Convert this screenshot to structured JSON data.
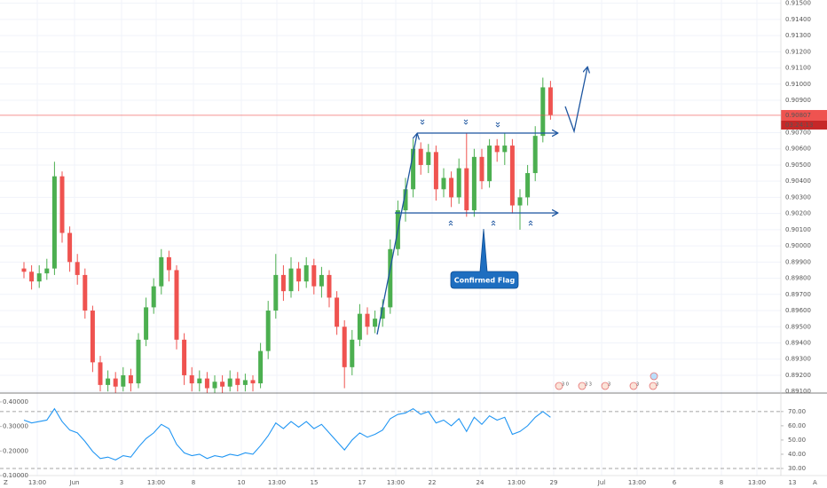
{
  "chart_data": [
    {
      "type": "candlestick",
      "x_labels": [
        "13:00",
        "Jun",
        "3",
        "13:00",
        "8",
        "10",
        "13:00",
        "15",
        "17",
        "13:00",
        "22",
        "24",
        "13:00",
        "29",
        "Jul",
        "13:00",
        "6",
        "8",
        "13:00",
        "13"
      ],
      "open": [
        0.8986,
        0.8984,
        0.8978,
        0.8983,
        0.8986,
        0.9043,
        0.9008,
        0.899,
        0.8982,
        0.896,
        0.8928,
        0.8914,
        0.8918,
        0.8913,
        0.892,
        0.8915,
        0.8942,
        0.8962,
        0.8975,
        0.8993,
        0.8985,
        0.8942,
        0.892,
        0.8915,
        0.8918,
        0.8912,
        0.8916,
        0.8913,
        0.8918,
        0.8914,
        0.8917,
        0.8915,
        0.8935,
        0.896,
        0.8982,
        0.8972,
        0.8986,
        0.8978,
        0.8988,
        0.8975,
        0.8982,
        0.8968,
        0.895,
        0.8925,
        0.8942,
        0.8958,
        0.895,
        0.8955,
        0.8962,
        0.8998,
        0.9022,
        0.9035,
        0.906,
        0.905,
        0.9058,
        0.9035,
        0.9042,
        0.903,
        0.9048,
        0.9022,
        0.9055,
        0.904,
        0.9062,
        0.9058,
        0.9062,
        0.9025,
        0.903,
        0.9045,
        0.9068,
        0.9098
      ],
      "high": [
        0.899,
        0.8988,
        0.8988,
        0.8992,
        0.9052,
        0.9046,
        0.9012,
        0.8995,
        0.8986,
        0.8963,
        0.8932,
        0.8923,
        0.8922,
        0.8925,
        0.8924,
        0.8946,
        0.8968,
        0.898,
        0.8998,
        0.8997,
        0.8988,
        0.8946,
        0.8925,
        0.8923,
        0.8922,
        0.892,
        0.892,
        0.8923,
        0.8922,
        0.8921,
        0.892,
        0.894,
        0.8966,
        0.8995,
        0.8988,
        0.8993,
        0.899,
        0.8993,
        0.8992,
        0.8987,
        0.8985,
        0.8972,
        0.8954,
        0.8948,
        0.8964,
        0.8962,
        0.896,
        0.8967,
        0.9004,
        0.9028,
        0.9042,
        0.9066,
        0.9064,
        0.9063,
        0.9062,
        0.9048,
        0.9046,
        0.9054,
        0.907,
        0.906,
        0.906,
        0.9066,
        0.9066,
        0.907,
        0.9066,
        0.9035,
        0.905,
        0.9074,
        0.9104,
        0.9102
      ],
      "low": [
        0.898,
        0.8973,
        0.8974,
        0.8979,
        0.8982,
        0.9002,
        0.8984,
        0.8976,
        0.8955,
        0.8922,
        0.891,
        0.891,
        0.8909,
        0.891,
        0.891,
        0.8912,
        0.8938,
        0.8958,
        0.897,
        0.8978,
        0.8936,
        0.8914,
        0.891,
        0.891,
        0.8909,
        0.8909,
        0.8909,
        0.891,
        0.891,
        0.891,
        0.891,
        0.8912,
        0.893,
        0.8955,
        0.8966,
        0.8968,
        0.8972,
        0.8974,
        0.897,
        0.8968,
        0.8962,
        0.8945,
        0.8912,
        0.892,
        0.8938,
        0.8945,
        0.8946,
        0.895,
        0.8958,
        0.8994,
        0.9015,
        0.903,
        0.9044,
        0.9045,
        0.9028,
        0.903,
        0.9024,
        0.9026,
        0.9018,
        0.9018,
        0.9035,
        0.9036,
        0.9052,
        0.905,
        0.902,
        0.901,
        0.9025,
        0.904,
        0.9064,
        0.9078
      ],
      "close": [
        0.8984,
        0.8978,
        0.8983,
        0.8986,
        0.9043,
        0.9008,
        0.899,
        0.8982,
        0.896,
        0.8928,
        0.8914,
        0.8918,
        0.8913,
        0.892,
        0.8915,
        0.8942,
        0.8962,
        0.8975,
        0.8993,
        0.8985,
        0.8942,
        0.892,
        0.8915,
        0.8918,
        0.8912,
        0.8916,
        0.8913,
        0.8918,
        0.8914,
        0.8917,
        0.8915,
        0.8935,
        0.896,
        0.8982,
        0.8972,
        0.8986,
        0.8978,
        0.8988,
        0.8975,
        0.8982,
        0.8968,
        0.895,
        0.8925,
        0.8942,
        0.8958,
        0.895,
        0.8955,
        0.8962,
        0.8998,
        0.9022,
        0.9035,
        0.906,
        0.905,
        0.9058,
        0.9035,
        0.9042,
        0.903,
        0.9048,
        0.9022,
        0.9055,
        0.904,
        0.9062,
        0.9058,
        0.9062,
        0.9025,
        0.903,
        0.9045,
        0.9068,
        0.9098,
        0.9081
      ],
      "up_color": "#4caf50",
      "down_color": "#ef5350",
      "ylim": [
        0.8909,
        0.9152
      ],
      "yticks": [
        {
          "value": 0.915,
          "label": "0.91500"
        },
        {
          "value": 0.914,
          "label": "0.91400"
        },
        {
          "value": 0.913,
          "label": "0.91300"
        },
        {
          "value": 0.912,
          "label": "0.91200"
        },
        {
          "value": 0.911,
          "label": "0.91100"
        },
        {
          "value": 0.91,
          "label": "0.91000"
        },
        {
          "value": 0.909,
          "label": "0.90900"
        },
        {
          "value": 0.907,
          "label": "0.90700"
        },
        {
          "value": 0.906,
          "label": "0.90600"
        },
        {
          "value": 0.905,
          "label": "0.90500"
        },
        {
          "value": 0.904,
          "label": "0.90400"
        },
        {
          "value": 0.903,
          "label": "0.90300"
        },
        {
          "value": 0.902,
          "label": "0.90200"
        },
        {
          "value": 0.901,
          "label": "0.90100"
        },
        {
          "value": 0.9,
          "label": "0.90000"
        },
        {
          "value": 0.899,
          "label": "0.89900"
        },
        {
          "value": 0.898,
          "label": "0.89800"
        },
        {
          "value": 0.897,
          "label": "0.89700"
        },
        {
          "value": 0.896,
          "label": "0.89600"
        },
        {
          "value": 0.895,
          "label": "0.89500"
        },
        {
          "value": 0.894,
          "label": "0.89400"
        },
        {
          "value": 0.893,
          "label": "0.89300"
        },
        {
          "value": 0.892,
          "label": "0.89200"
        },
        {
          "value": 0.891,
          "label": "0.89100"
        }
      ],
      "grid": true,
      "last_price": 0.90807,
      "last_price_color": "#ef5350",
      "countdown": "03:24:13",
      "annotation": "Confirmed Flag",
      "events": [
        "3 0",
        "3 3",
        "3",
        "3",
        "3"
      ]
    },
    {
      "type": "line",
      "values": [
        64,
        62,
        63,
        64,
        72,
        63,
        57,
        55,
        49,
        42,
        37,
        38,
        36,
        39,
        38,
        45,
        51,
        55,
        61,
        58,
        47,
        41,
        39,
        40,
        37,
        39,
        38,
        40,
        39,
        41,
        40,
        46,
        53,
        62,
        58,
        63,
        59,
        63,
        58,
        61,
        55,
        49,
        43,
        50,
        55,
        52,
        54,
        57,
        65,
        68,
        69,
        72,
        68,
        70,
        62,
        64,
        60,
        65,
        56,
        66,
        61,
        67,
        64,
        66,
        54,
        56,
        60,
        66,
        70,
        66
      ],
      "color": "#2196f3",
      "ylim": [
        25,
        83
      ],
      "yticks": [
        {
          "value": 70,
          "label": "70.00"
        },
        {
          "value": 60,
          "label": "60.00"
        },
        {
          "value": 50,
          "label": "50.00"
        },
        {
          "value": 40,
          "label": "40.00"
        },
        {
          "value": 30,
          "label": "30.00"
        }
      ],
      "bands": [
        30,
        70
      ],
      "y2lim": [
        0.1,
        0.436
      ],
      "y2ticks": [
        {
          "value": 0.4,
          "label": "0.40000"
        },
        {
          "value": 0.3,
          "label": "0.30000"
        },
        {
          "value": 0.2,
          "label": "0.20000"
        },
        {
          "value": 0.1,
          "label": "0.10000"
        }
      ]
    }
  ],
  "toolbar": [
    "Z",
    "A"
  ]
}
